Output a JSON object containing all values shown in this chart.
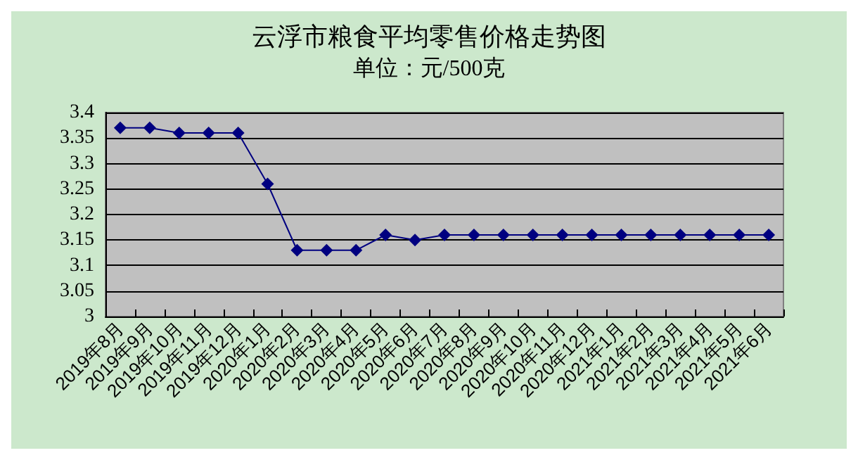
{
  "chart_data": {
    "type": "line",
    "title": "云浮市粮食平均零售价格走势图",
    "subtitle": "单位：元/500克",
    "categories": [
      "2019年8月",
      "2019年9月",
      "2019年10月",
      "2019年11月",
      "2019年12月",
      "2020年1月",
      "2020年2月",
      "2020年3月",
      "2020年4月",
      "2020年5月",
      "2020年6月",
      "2020年7月",
      "2020年8月",
      "2020年9月",
      "2020年10月",
      "2020年11月",
      "2020年12月",
      "2021年1月",
      "2021年2月",
      "2021年3月",
      "2021年4月",
      "2021年5月",
      "2021年6月"
    ],
    "series": [
      {
        "color": "#000080",
        "values": [
          3.37,
          3.37,
          3.36,
          3.36,
          3.36,
          3.26,
          3.13,
          3.13,
          3.13,
          3.16,
          3.15,
          3.16,
          3.16,
          3.16,
          3.16,
          3.16,
          3.16,
          3.16,
          3.16,
          3.16,
          3.16,
          3.16,
          3.16
        ]
      }
    ],
    "ylim": [
      3,
      3.4
    ],
    "yticks": [
      3,
      3.05,
      3.1,
      3.15,
      3.2,
      3.25,
      3.3,
      3.35,
      3.4
    ],
    "grid": "y",
    "marker": "diamond",
    "line_style": "solid"
  }
}
